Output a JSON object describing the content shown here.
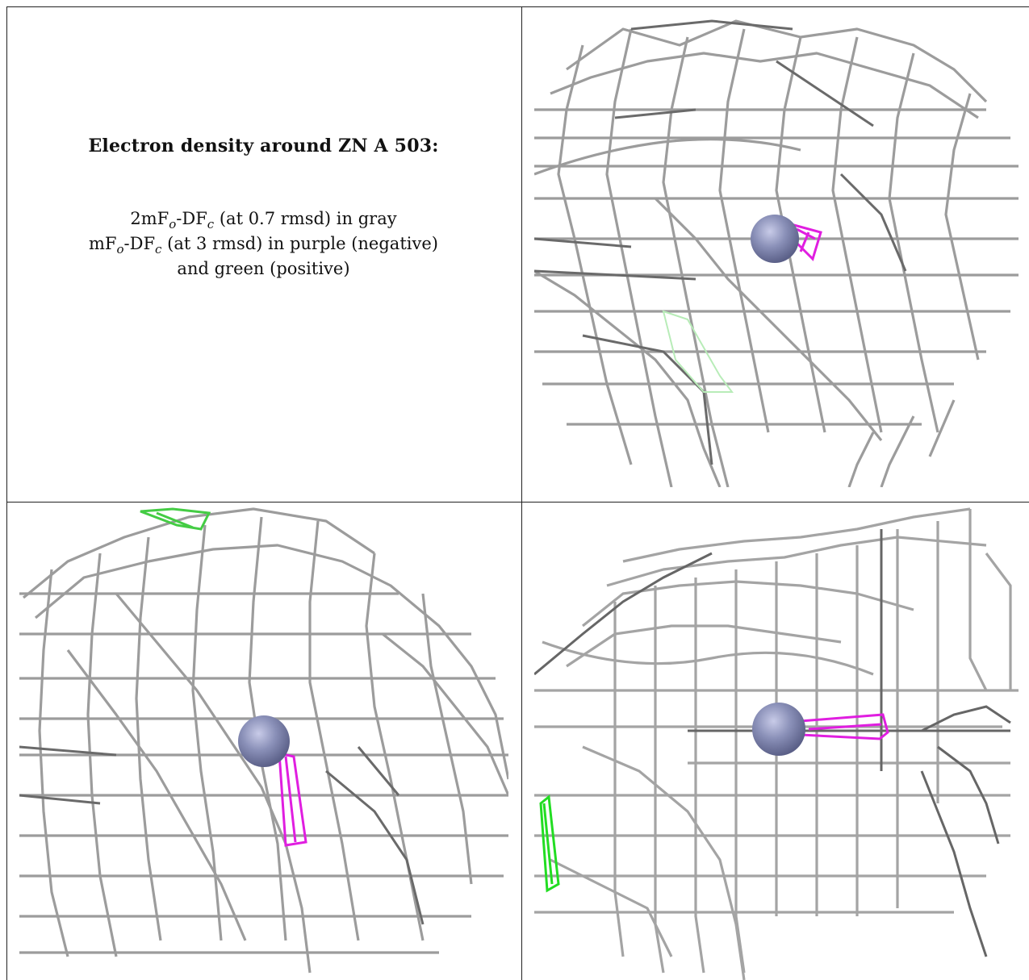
{
  "caption": {
    "title": "Electron density around ZN A 503:",
    "line1_prefix": "2mF",
    "line1_sub1": "o",
    "line1_mid": "-DF",
    "line1_sub2": "c",
    "line1_suffix": " (at 0.7 rmsd) in gray",
    "line2_prefix": "mF",
    "line2_sub1": "o",
    "line2_mid": "-DF",
    "line2_sub2": "c",
    "line2_suffix": " (at 3 rmsd) in purple (negative)",
    "line3": "and green (positive)"
  },
  "colors": {
    "mesh_gray": "#9a9a9a",
    "mesh_dark": "#5e5e5e",
    "negative_purple": "#e01ee0",
    "positive_green": "#22dd22",
    "zinc_atom": "#8a90b8"
  },
  "panels": [
    {
      "id": "view-1",
      "description_icon": "mesh-wireframe"
    },
    {
      "id": "view-2",
      "description_icon": "mesh-wireframe"
    },
    {
      "id": "view-3",
      "description_icon": "mesh-wireframe"
    }
  ]
}
